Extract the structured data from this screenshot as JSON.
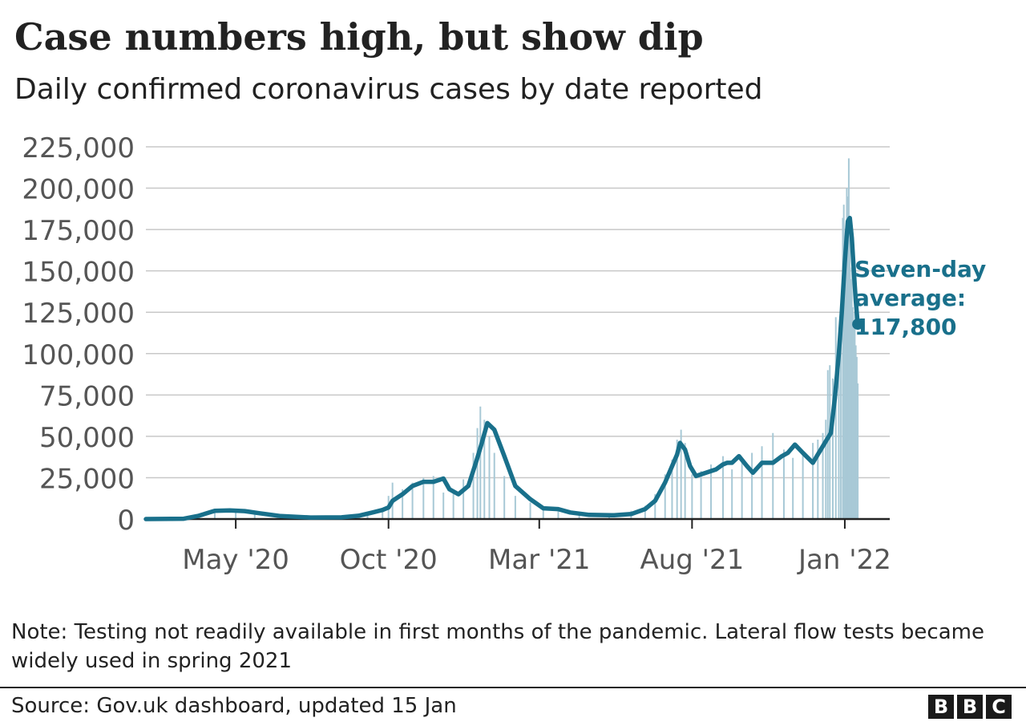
{
  "title": "Case numbers high, but show dip",
  "subtitle": "Daily confirmed coronavirus cases by date reported",
  "note": "Note: Testing not readily available in first months of the pandemic. Lateral flow tests became widely used in spring 2021",
  "source": "Source: Gov.uk dashboard, updated 15 Jan",
  "logo": {
    "letters": [
      "B",
      "B",
      "C"
    ]
  },
  "annotation": {
    "lines": [
      "Seven-day",
      "average:",
      "117,800"
    ],
    "value": 117800,
    "date": "2022-01-14"
  },
  "colors": {
    "line": "#19708b",
    "bars": "#a8c9d6",
    "grid": "#c8c8c8",
    "axis": "#222222",
    "tick_text": "#555555"
  },
  "chart_data": {
    "type": "line",
    "xlabel": "",
    "ylabel": "",
    "ylim": [
      0,
      225000
    ],
    "yticks": [
      0,
      25000,
      50000,
      75000,
      100000,
      125000,
      150000,
      175000,
      200000,
      225000
    ],
    "ytick_labels": [
      "0",
      "25,000",
      "50,000",
      "75,000",
      "100,000",
      "125,000",
      "150,000",
      "175,000",
      "200,000",
      "225,000"
    ],
    "xlim": [
      "2020-02-01",
      "2022-02-15"
    ],
    "xticks": [
      "2020-05-01",
      "2020-10-01",
      "2021-03-01",
      "2021-08-01",
      "2022-01-01"
    ],
    "xtick_labels": [
      "May '20",
      "Oct '20",
      "Mar '21",
      "Aug '21",
      "Jan '22"
    ],
    "grid": true,
    "legend": "none",
    "series": [
      {
        "type": "bar",
        "x": [
          "2020-03-15",
          "2020-04-10",
          "2020-05-01",
          "2020-05-20",
          "2020-06-15",
          "2020-07-15",
          "2020-08-15",
          "2020-09-10",
          "2020-09-25",
          "2020-10-01",
          "2020-10-05",
          "2020-10-15",
          "2020-10-25",
          "2020-11-05",
          "2020-11-15",
          "2020-11-25",
          "2020-12-05",
          "2020-12-15",
          "2020-12-25",
          "2020-12-29",
          "2021-01-01",
          "2021-01-05",
          "2021-01-10",
          "2021-01-15",
          "2021-01-25",
          "2021-02-05",
          "2021-02-20",
          "2021-03-05",
          "2021-03-20",
          "2021-04-10",
          "2021-05-10",
          "2021-06-01",
          "2021-06-15",
          "2021-06-25",
          "2021-07-05",
          "2021-07-12",
          "2021-07-17",
          "2021-07-21",
          "2021-07-25",
          "2021-08-01",
          "2021-08-10",
          "2021-08-20",
          "2021-09-01",
          "2021-09-10",
          "2021-09-20",
          "2021-09-30",
          "2021-10-10",
          "2021-10-21",
          "2021-11-01",
          "2021-11-10",
          "2021-11-20",
          "2021-11-30",
          "2021-12-05",
          "2021-12-10",
          "2021-12-13",
          "2021-12-15",
          "2021-12-17",
          "2021-12-20",
          "2021-12-23",
          "2021-12-26",
          "2021-12-28",
          "2021-12-30",
          "2021-12-31",
          "2022-01-01",
          "2022-01-02",
          "2022-01-03",
          "2022-01-04",
          "2022-01-05",
          "2022-01-06",
          "2022-01-07",
          "2022-01-08",
          "2022-01-09",
          "2022-01-10",
          "2022-01-11",
          "2022-01-12",
          "2022-01-13",
          "2022-01-14"
        ],
        "values": [
          1000,
          4500,
          5000,
          3000,
          1500,
          800,
          1200,
          3500,
          6500,
          14000,
          22000,
          18000,
          22000,
          25000,
          26000,
          16000,
          17000,
          24000,
          40000,
          55000,
          68000,
          60000,
          50000,
          40000,
          26000,
          14000,
          10000,
          6500,
          5500,
          3000,
          2500,
          5000,
          8000,
          15000,
          27000,
          36000,
          48000,
          54000,
          46000,
          27000,
          29000,
          33000,
          38000,
          30000,
          36000,
          40000,
          44000,
          52000,
          42000,
          37000,
          41000,
          46000,
          48000,
          52000,
          60000,
          90000,
          93000,
          85000,
          122000,
          105000,
          130000,
          182000,
          190000,
          162000,
          150000,
          200000,
          195000,
          218000,
          175000,
          145000,
          152000,
          128000,
          118000,
          125000,
          105000,
          98000,
          82000
        ]
      },
      {
        "name": "Seven-day average",
        "type": "line",
        "x": [
          "2020-02-01",
          "2020-03-10",
          "2020-03-25",
          "2020-04-10",
          "2020-04-25",
          "2020-05-10",
          "2020-05-25",
          "2020-06-15",
          "2020-07-15",
          "2020-08-15",
          "2020-09-01",
          "2020-09-15",
          "2020-09-25",
          "2020-10-01",
          "2020-10-05",
          "2020-10-15",
          "2020-10-25",
          "2020-11-05",
          "2020-11-15",
          "2020-11-25",
          "2020-12-01",
          "2020-12-10",
          "2020-12-20",
          "2020-12-28",
          "2021-01-02",
          "2021-01-08",
          "2021-01-15",
          "2021-01-25",
          "2021-02-05",
          "2021-02-20",
          "2021-03-05",
          "2021-03-20",
          "2021-04-01",
          "2021-04-20",
          "2021-05-15",
          "2021-06-01",
          "2021-06-15",
          "2021-06-25",
          "2021-07-05",
          "2021-07-12",
          "2021-07-17",
          "2021-07-20",
          "2021-07-25",
          "2021-07-30",
          "2021-08-05",
          "2021-08-15",
          "2021-08-25",
          "2021-09-01",
          "2021-09-05",
          "2021-09-10",
          "2021-09-17",
          "2021-09-25",
          "2021-10-01",
          "2021-10-10",
          "2021-10-21",
          "2021-10-30",
          "2021-11-05",
          "2021-11-12",
          "2021-11-20",
          "2021-11-30",
          "2021-12-05",
          "2021-12-10",
          "2021-12-14",
          "2021-12-18",
          "2021-12-22",
          "2021-12-26",
          "2021-12-29",
          "2022-01-01",
          "2022-01-04",
          "2022-01-06",
          "2022-01-08",
          "2022-01-10",
          "2022-01-12",
          "2022-01-14"
        ],
        "values": [
          0,
          200,
          2000,
          5000,
          5200,
          4800,
          3500,
          1800,
          900,
          1000,
          2000,
          4000,
          5500,
          7000,
          11000,
          15000,
          20000,
          22500,
          22500,
          24500,
          18000,
          15000,
          20000,
          35000,
          45000,
          58000,
          54000,
          38000,
          20000,
          12000,
          6500,
          6000,
          4000,
          2500,
          2300,
          3000,
          6000,
          11000,
          22000,
          32000,
          39000,
          46000,
          42000,
          32000,
          26000,
          28000,
          30000,
          33000,
          34000,
          34000,
          38000,
          32000,
          28000,
          34000,
          34000,
          38000,
          40000,
          45000,
          40000,
          34000,
          39000,
          44000,
          48000,
          52000,
          73000,
          100000,
          125000,
          155000,
          180000,
          182000,
          170000,
          150000,
          132000,
          117800
        ]
      }
    ]
  }
}
